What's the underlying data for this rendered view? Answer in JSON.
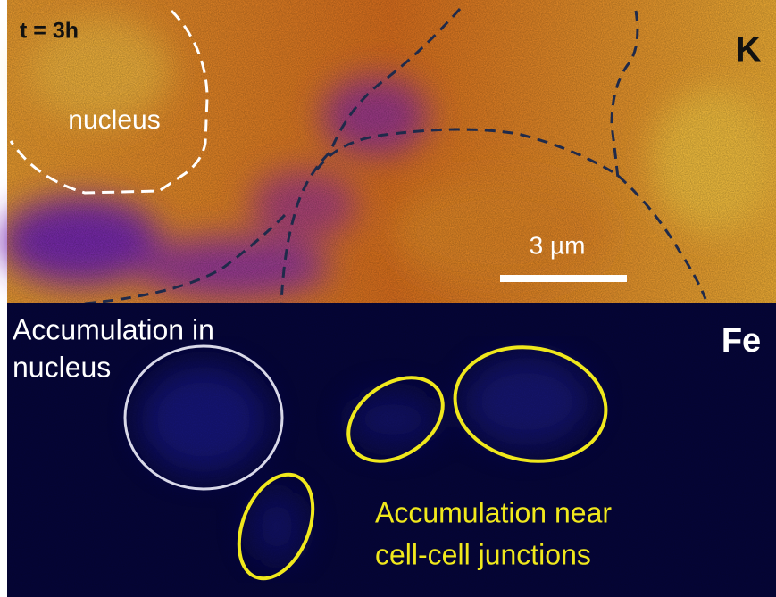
{
  "top_panel": {
    "time_label": "t = 3h",
    "element": "K",
    "nucleus_label": "nucleus",
    "scale_bar": "3 µm"
  },
  "bottom_panel": {
    "element": "Fe",
    "nucleus_note": [
      "Accumulation in",
      "nucleus"
    ],
    "junction_note": [
      "Accumulation near",
      "cell-cell junctions"
    ]
  }
}
